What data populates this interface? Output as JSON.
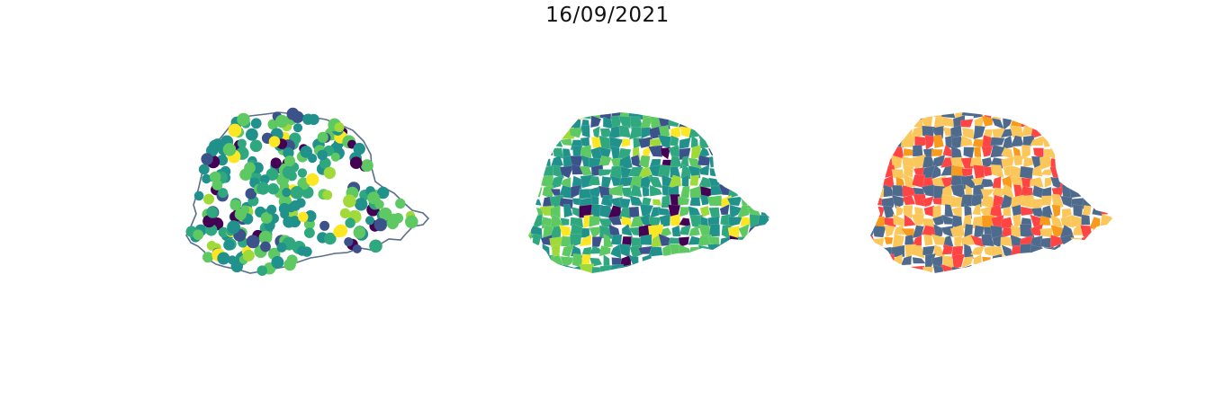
{
  "figure": {
    "title": "16/09/2021"
  },
  "panels": [
    {
      "name": "points",
      "style": "scatter-over-outline"
    },
    {
      "name": "choropleth-viridis",
      "style": "viridis-fill"
    },
    {
      "name": "choropleth-categorical",
      "style": "categorical-fill"
    }
  ],
  "colors": {
    "outline": "#5a6f8a",
    "viridis": [
      "#440154",
      "#3b528b",
      "#21918c",
      "#2fa87f",
      "#5ec962",
      "#9fda3a",
      "#fde725"
    ],
    "categorical": [
      "#4e6a8c",
      "#fcc75a",
      "#ff4444",
      "#f89a1c"
    ]
  }
}
